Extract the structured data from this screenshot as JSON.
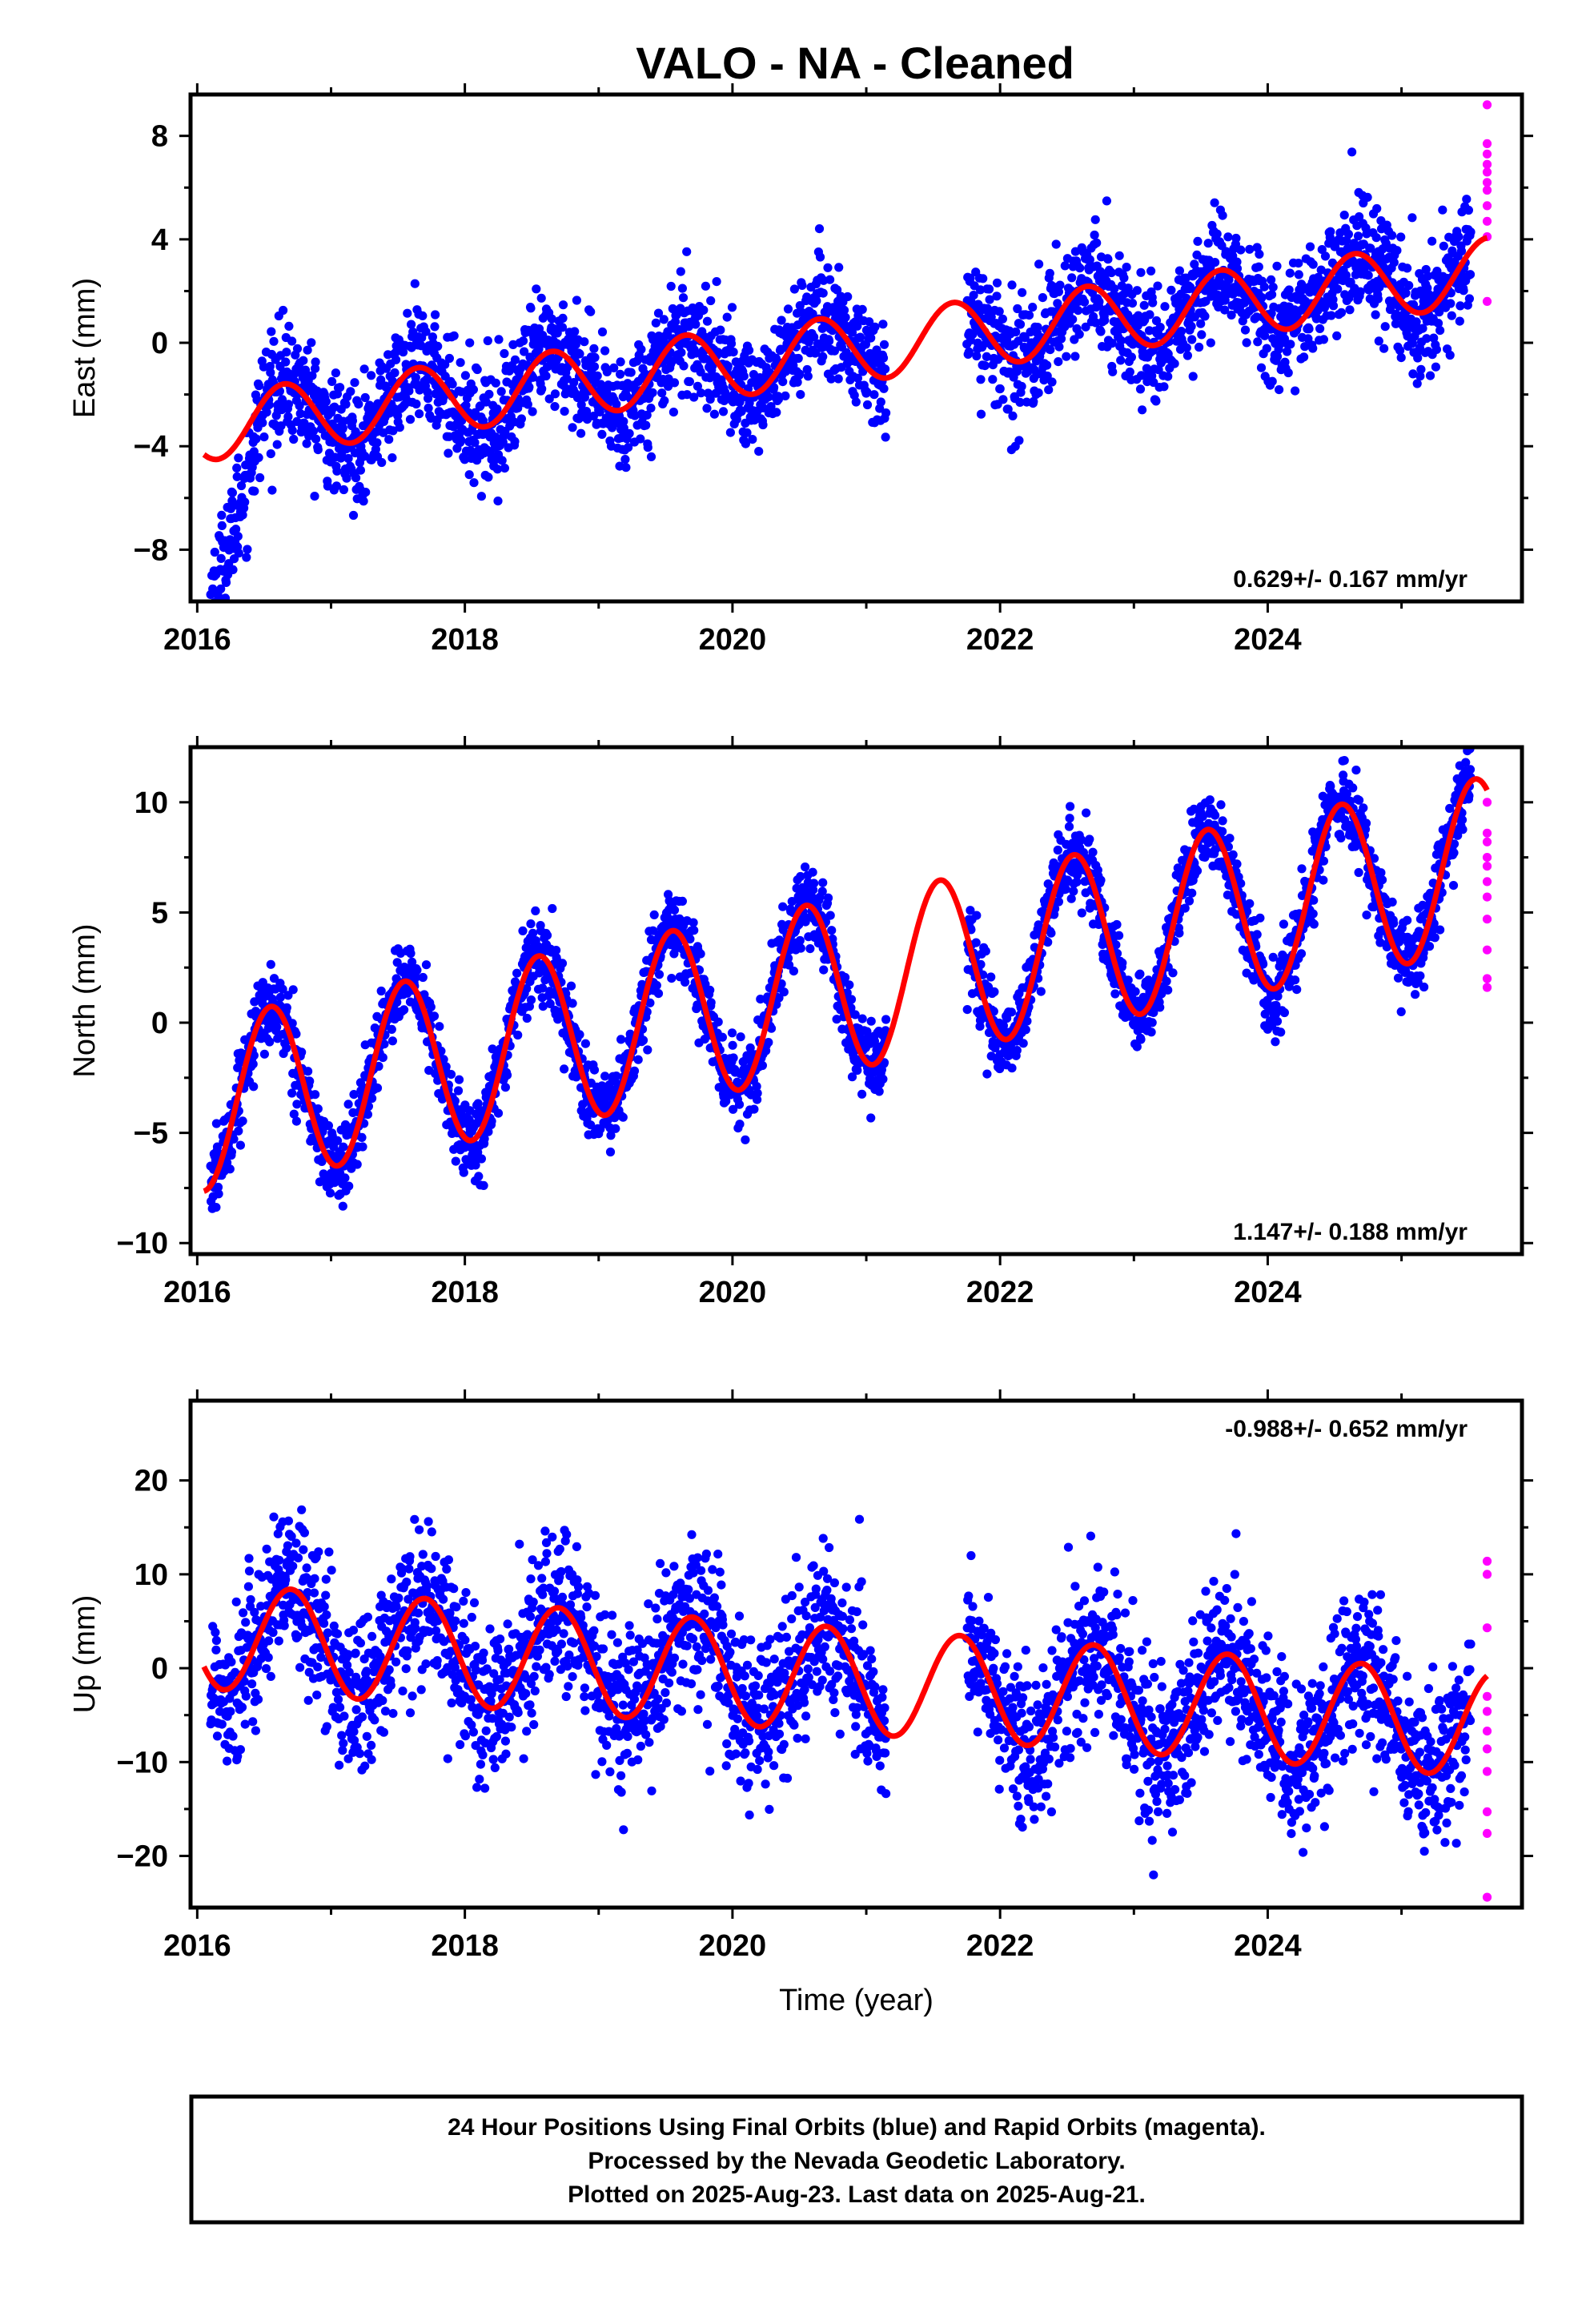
{
  "title": "VALO  - NA - Cleaned",
  "colors": {
    "final": "#0000ff",
    "rapid": "#ff00ff",
    "model": "#ff0000",
    "frame": "#000000"
  },
  "caption": {
    "line1": "24 Hour Positions Using Final Orbits (blue) and Rapid Orbits (magenta).",
    "line2": "Processed by the Nevada Geodetic Laboratory.",
    "line3": "Plotted on 2025-Aug-23. Last data on 2025-Aug-21."
  },
  "chart_data": [
    {
      "type": "scatter",
      "ylabel": "East (mm)",
      "xlabel": "",
      "xlim": [
        2015.95,
        2025.9
      ],
      "ylim": [
        -10.0,
        9.6
      ],
      "xticks": [
        2016,
        2018,
        2020,
        2022,
        2024
      ],
      "yticks": [
        -8,
        -4,
        0,
        4,
        8
      ],
      "rate_label": "0.629+/- 0.167 mm/yr",
      "rate_position": "bottom-right",
      "model": {
        "trend_start": -3.3,
        "rate": 0.629,
        "amplitude": 1.3,
        "peak_year_fraction": 0.65
      },
      "data_gap": [
        2021.15,
        2021.75
      ],
      "scatter_sd": 1.1,
      "early_offset": [
        -5.5,
        2016.1,
        2016.5
      ],
      "last_final_epoch": 2025.52,
      "last_epoch": 2025.64,
      "rapid_points": [
        9.2,
        7.7,
        7.3,
        6.9,
        6.6,
        6.2,
        5.9,
        5.3,
        4.7,
        4.1,
        1.6
      ]
    },
    {
      "type": "scatter",
      "ylabel": "North (mm)",
      "xlabel": "",
      "xlim": [
        2015.95,
        2025.9
      ],
      "ylim": [
        -10.5,
        12.5
      ],
      "xticks": [
        2016,
        2018,
        2020,
        2022,
        2024
      ],
      "yticks": [
        -10,
        -5,
        0,
        5,
        10
      ],
      "rate_label": "1.147+/- 0.188 mm/yr",
      "rate_position": "bottom-right",
      "model": {
        "trend_start": -3.8,
        "rate": 1.147,
        "amplitude": 3.9,
        "peak_year_fraction": 0.55
      },
      "data_gap": [
        2021.15,
        2021.75
      ],
      "scatter_sd": 0.9,
      "early_offset": [
        0,
        2016.1,
        2016.5
      ],
      "last_final_epoch": 2025.52,
      "last_epoch": 2025.64,
      "rapid_points": [
        10.0,
        8.6,
        8.2,
        7.5,
        7.1,
        6.4,
        5.7,
        4.7,
        3.3,
        2.0,
        1.6
      ]
    },
    {
      "type": "scatter",
      "ylabel": "Up (mm)",
      "xlabel": "Time (year)",
      "xlim": [
        2015.95,
        2025.9
      ],
      "ylim": [
        -25.5,
        28.5
      ],
      "xticks": [
        2016,
        2018,
        2020,
        2022,
        2024
      ],
      "yticks": [
        -20,
        -10,
        0,
        10,
        20
      ],
      "rate_label": "-0.988+/- 0.652 mm/yr",
      "rate_position": "top-right",
      "model": {
        "trend_start": 3.5,
        "rate": -0.988,
        "amplitude": 5.6,
        "peak_year_fraction": 0.7
      },
      "data_gap": [
        2021.15,
        2021.75
      ],
      "scatter_sd": 4.2,
      "early_offset": [
        0,
        2016.1,
        2016.5
      ],
      "last_final_epoch": 2025.52,
      "last_epoch": 2025.64,
      "rapid_points": [
        11.4,
        10.0,
        4.3,
        -3.0,
        -4.6,
        -6.7,
        -8.6,
        -11.0,
        -15.3,
        -17.6,
        -24.4
      ]
    }
  ]
}
